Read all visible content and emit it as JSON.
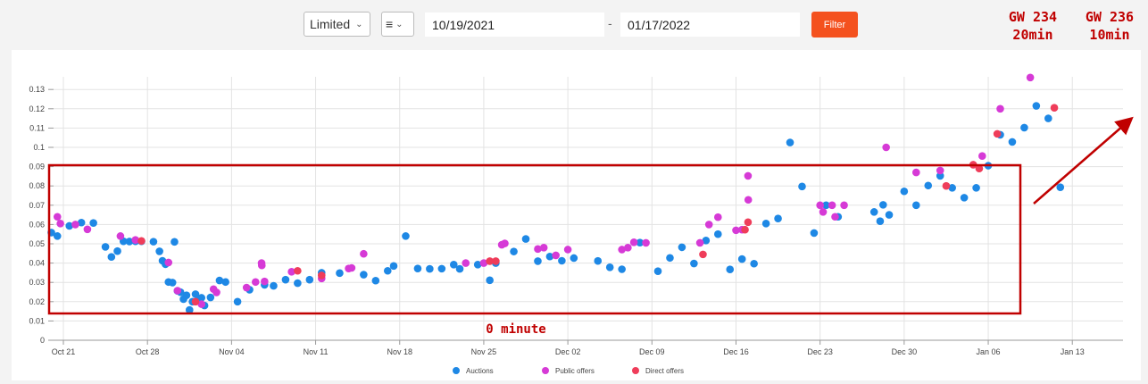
{
  "toolbar": {
    "type_select": "Limited",
    "view_icon": "list-menu-icon",
    "date_from": "10/19/2021",
    "date_separator": "-",
    "date_to": "01/17/2022",
    "filter_label": "Filter",
    "filter_color": "#f4511e"
  },
  "annotations": {
    "gw234_line1": "GW 234",
    "gw234_line2": "20min",
    "gw236_line1": "GW 236",
    "gw236_line2": "10min",
    "zero_label": "0 minute",
    "annotation_color": "#c00000"
  },
  "chart_data": {
    "type": "scatter",
    "title": "",
    "xlabel": "",
    "ylabel": "",
    "xlim": [
      "2021-10-19",
      "2022-01-17"
    ],
    "ylim": [
      0,
      0.13
    ],
    "grid": true,
    "legend_position": "bottom-center",
    "y_ticks": [
      "0",
      "0.01",
      "0.02",
      "0.03",
      "0.04",
      "0.05",
      "0.06",
      "0.07",
      "0.08",
      "0.09",
      "0.1",
      "0.11",
      "0.12",
      "0.13"
    ],
    "x_ticks": [
      {
        "date": "2021-10-21",
        "label": "Oct 21"
      },
      {
        "date": "2021-10-28",
        "label": "Oct 28"
      },
      {
        "date": "2021-11-04",
        "label": "Nov 04"
      },
      {
        "date": "2021-11-11",
        "label": "Nov 11"
      },
      {
        "date": "2021-11-18",
        "label": "Nov 18"
      },
      {
        "date": "2021-11-25",
        "label": "Nov 25"
      },
      {
        "date": "2021-12-02",
        "label": "Dec 02"
      },
      {
        "date": "2021-12-09",
        "label": "Dec 09"
      },
      {
        "date": "2021-12-16",
        "label": "Dec 16"
      },
      {
        "date": "2021-12-23",
        "label": "Dec 23"
      },
      {
        "date": "2021-12-30",
        "label": "Dec 30"
      },
      {
        "date": "2022-01-06",
        "label": "Jan 06"
      },
      {
        "date": "2022-01-13",
        "label": "Jan 13"
      }
    ],
    "series": [
      {
        "name": "Auctions",
        "color": "#1e88e5",
        "points": [
          [
            "2021-10-20T00:00",
            0.0558
          ],
          [
            "2021-10-20T12:00",
            0.054
          ],
          [
            "2021-10-21T12:00",
            0.0593
          ],
          [
            "2021-10-22T12:00",
            0.061
          ],
          [
            "2021-10-23T12:00",
            0.0608
          ],
          [
            "2021-10-24T12:00",
            0.0484
          ],
          [
            "2021-10-25T00:00",
            0.0432
          ],
          [
            "2021-10-25T12:00",
            0.0462
          ],
          [
            "2021-10-26T00:00",
            0.0513
          ],
          [
            "2021-10-26T12:00",
            0.0512
          ],
          [
            "2021-10-27T00:00",
            0.0513
          ],
          [
            "2021-10-27T12:00",
            0.0513
          ],
          [
            "2021-10-28T12:00",
            0.0511
          ],
          [
            "2021-10-29T00:00",
            0.0461
          ],
          [
            "2021-10-29T06:00",
            0.0412
          ],
          [
            "2021-10-29T12:00",
            0.0394
          ],
          [
            "2021-10-29T18:00",
            0.0302
          ],
          [
            "2021-10-30T02:00",
            0.0299
          ],
          [
            "2021-10-30T06:00",
            0.051
          ],
          [
            "2021-10-30T12:00",
            0.0256
          ],
          [
            "2021-10-30T18:00",
            0.0249
          ],
          [
            "2021-10-31T00:00",
            0.0213
          ],
          [
            "2021-10-31T06:00",
            0.0233
          ],
          [
            "2021-10-31T12:00",
            0.0157
          ],
          [
            "2021-10-31T18:00",
            0.02
          ],
          [
            "2021-11-01T00:00",
            0.0239
          ],
          [
            "2021-11-01T08:00",
            0.0215
          ],
          [
            "2021-11-01T12:00",
            0.022
          ],
          [
            "2021-11-01T18:00",
            0.018
          ],
          [
            "2021-11-02T06:00",
            0.0222
          ],
          [
            "2021-11-03T00:00",
            0.031
          ],
          [
            "2021-11-03T12:00",
            0.0302
          ],
          [
            "2021-11-04T12:00",
            0.02
          ],
          [
            "2021-11-05T12:00",
            0.0262
          ],
          [
            "2021-11-06T18:00",
            0.0287
          ],
          [
            "2021-11-07T12:00",
            0.0282
          ],
          [
            "2021-11-08T12:00",
            0.0314
          ],
          [
            "2021-11-09T12:00",
            0.0296
          ],
          [
            "2021-11-10T12:00",
            0.0314
          ],
          [
            "2021-11-11T12:00",
            0.035
          ],
          [
            "2021-11-13T00:00",
            0.0348
          ],
          [
            "2021-11-15T00:00",
            0.034
          ],
          [
            "2021-11-16T00:00",
            0.0309
          ],
          [
            "2021-11-17T00:00",
            0.036
          ],
          [
            "2021-11-17T12:00",
            0.0385
          ],
          [
            "2021-11-18T12:00",
            0.054
          ],
          [
            "2021-11-19T12:00",
            0.0372
          ],
          [
            "2021-11-20T12:00",
            0.037
          ],
          [
            "2021-11-21T12:00",
            0.0371
          ],
          [
            "2021-11-22T12:00",
            0.0392
          ],
          [
            "2021-11-23T00:00",
            0.037
          ],
          [
            "2021-11-24T12:00",
            0.0392
          ],
          [
            "2021-11-25T12:00",
            0.0311
          ],
          [
            "2021-11-26T00:00",
            0.04
          ],
          [
            "2021-11-27T12:00",
            0.046
          ],
          [
            "2021-11-28T12:00",
            0.0525
          ],
          [
            "2021-11-29T12:00",
            0.041
          ],
          [
            "2021-11-30T12:00",
            0.0434
          ],
          [
            "2021-12-01T12:00",
            0.0412
          ],
          [
            "2021-12-02T12:00",
            0.0426
          ],
          [
            "2021-12-04T12:00",
            0.0411
          ],
          [
            "2021-12-05T12:00",
            0.0378
          ],
          [
            "2021-12-06T12:00",
            0.0368
          ],
          [
            "2021-12-08T00:00",
            0.0506
          ],
          [
            "2021-12-09T12:00",
            0.0358
          ],
          [
            "2021-12-10T12:00",
            0.0427
          ],
          [
            "2021-12-11T12:00",
            0.0482
          ],
          [
            "2021-12-12T12:00",
            0.0398
          ],
          [
            "2021-12-13T12:00",
            0.0517
          ],
          [
            "2021-12-14T12:00",
            0.055
          ],
          [
            "2021-12-15T12:00",
            0.0367
          ],
          [
            "2021-12-16T12:00",
            0.0421
          ],
          [
            "2021-12-17T12:00",
            0.0397
          ],
          [
            "2021-12-18T12:00",
            0.0605
          ],
          [
            "2021-12-19T12:00",
            0.0631
          ],
          [
            "2021-12-20T12:00",
            0.1025
          ],
          [
            "2021-12-21T12:00",
            0.0797
          ],
          [
            "2021-12-22T12:00",
            0.0556
          ],
          [
            "2021-12-23T12:00",
            0.07
          ],
          [
            "2021-12-24T12:00",
            0.064
          ],
          [
            "2021-12-27T12:00",
            0.0665
          ],
          [
            "2021-12-28T00:00",
            0.0617
          ],
          [
            "2021-12-28T06:00",
            0.0702
          ],
          [
            "2021-12-28T18:00",
            0.065
          ],
          [
            "2021-12-30T00:00",
            0.0772
          ],
          [
            "2021-12-31T00:00",
            0.07
          ],
          [
            "2022-01-01T00:00",
            0.0802
          ],
          [
            "2022-01-02T00:00",
            0.0852
          ],
          [
            "2022-01-03T00:00",
            0.079
          ],
          [
            "2022-01-04T00:00",
            0.0739
          ],
          [
            "2022-01-05T00:00",
            0.079
          ],
          [
            "2022-01-06T00:00",
            0.0905
          ],
          [
            "2022-01-07T00:00",
            0.1065
          ],
          [
            "2022-01-08T00:00",
            0.1028
          ],
          [
            "2022-01-09T00:00",
            0.1102
          ],
          [
            "2022-01-10T00:00",
            0.1215
          ],
          [
            "2022-01-11T00:00",
            0.115
          ],
          [
            "2022-01-12T00:00",
            0.0793
          ]
        ]
      },
      {
        "name": "Public offers",
        "color": "#d63ad6",
        "points": [
          [
            "2021-10-20T12:00",
            0.064
          ],
          [
            "2021-10-20T18:00",
            0.0605
          ],
          [
            "2021-10-22T00:00",
            0.06
          ],
          [
            "2021-10-23T00:00",
            0.0575
          ],
          [
            "2021-10-25T18:00",
            0.054
          ],
          [
            "2021-10-27T00:00",
            0.052
          ],
          [
            "2021-10-29T18:00",
            0.0403
          ],
          [
            "2021-10-30T12:00",
            0.0257
          ],
          [
            "2021-11-01T12:00",
            0.0187
          ],
          [
            "2021-11-02T18:00",
            0.0248
          ],
          [
            "2021-11-02T12:00",
            0.0265
          ],
          [
            "2021-11-05T06:00",
            0.0273
          ],
          [
            "2021-11-06T00:00",
            0.0302
          ],
          [
            "2021-11-06T12:00",
            0.04
          ],
          [
            "2021-11-06T12:30",
            0.0388
          ],
          [
            "2021-11-06T18:00",
            0.0305
          ],
          [
            "2021-11-09T00:00",
            0.0355
          ],
          [
            "2021-11-11T12:00",
            0.032
          ],
          [
            "2021-11-13T18:00",
            0.0372
          ],
          [
            "2021-11-14T00:00",
            0.0375
          ],
          [
            "2021-11-15T00:00",
            0.0448
          ],
          [
            "2021-11-23T12:00",
            0.04
          ],
          [
            "2021-11-25T00:00",
            0.04
          ],
          [
            "2021-11-26T12:00",
            0.0495
          ],
          [
            "2021-11-26T18:00",
            0.0502
          ],
          [
            "2021-11-29T12:00",
            0.0473
          ],
          [
            "2021-11-30T00:00",
            0.048
          ],
          [
            "2021-12-01T00:00",
            0.044
          ],
          [
            "2021-12-02T00:00",
            0.047
          ],
          [
            "2021-12-06T12:00",
            0.047
          ],
          [
            "2021-12-07T00:00",
            0.048
          ],
          [
            "2021-12-07T12:00",
            0.0508
          ],
          [
            "2021-12-08T12:00",
            0.0505
          ],
          [
            "2021-12-13T00:00",
            0.0505
          ],
          [
            "2021-12-13T18:00",
            0.06
          ],
          [
            "2021-12-14T12:00",
            0.0638
          ],
          [
            "2021-12-16T00:00",
            0.057
          ],
          [
            "2021-12-16T12:00",
            0.0573
          ],
          [
            "2021-12-17T00:00",
            0.0852
          ],
          [
            "2021-12-17T00:30",
            0.0728
          ],
          [
            "2021-12-23T00:00",
            0.07
          ],
          [
            "2021-12-23T06:00",
            0.0665
          ],
          [
            "2021-12-24T00:00",
            0.07
          ],
          [
            "2021-12-24T06:00",
            0.064
          ],
          [
            "2021-12-25T00:00",
            0.07
          ],
          [
            "2021-12-28T12:00",
            0.1
          ],
          [
            "2021-12-31T00:00",
            0.087
          ],
          [
            "2022-01-02T00:00",
            0.088
          ],
          [
            "2022-01-05T12:00",
            0.0955
          ],
          [
            "2022-01-07T00:00",
            0.12
          ],
          [
            "2022-01-09T12:00",
            0.1362
          ]
        ]
      },
      {
        "name": "Direct offers",
        "color": "#ef3d5a",
        "points": [
          [
            "2021-10-27T12:00",
            0.0515
          ],
          [
            "2021-11-01T00:00",
            0.02
          ],
          [
            "2021-11-09T12:00",
            0.036
          ],
          [
            "2021-11-11T12:00",
            0.0336
          ],
          [
            "2021-11-25T12:00",
            0.041
          ],
          [
            "2021-11-26T00:00",
            0.041
          ],
          [
            "2021-12-13T06:00",
            0.0445
          ],
          [
            "2021-12-16T18:00",
            0.0573
          ],
          [
            "2021-12-17T00:00",
            0.0612
          ],
          [
            "2022-01-02T12:00",
            0.08
          ],
          [
            "2022-01-04T18:00",
            0.091
          ],
          [
            "2022-01-05T06:00",
            0.089
          ],
          [
            "2022-01-06T18:00",
            0.107
          ],
          [
            "2022-01-11T12:00",
            0.1205
          ]
        ]
      }
    ]
  }
}
